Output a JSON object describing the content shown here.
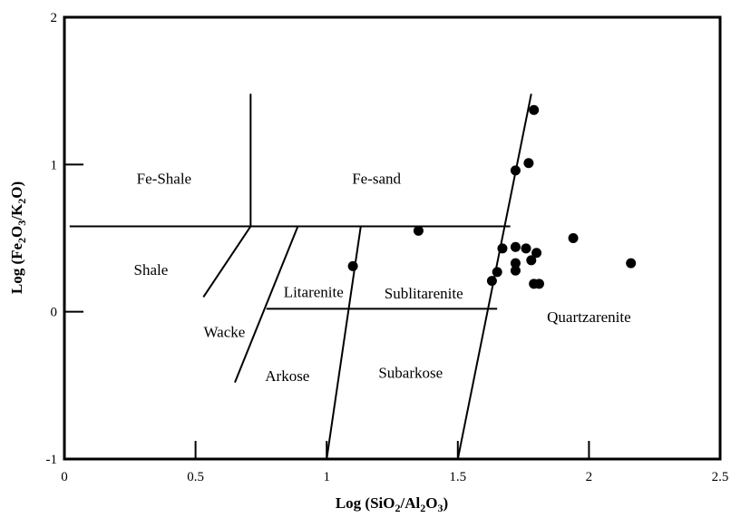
{
  "chart_data": {
    "type": "scatter",
    "title": "",
    "xlabel": {
      "prefix": "Log (SiO",
      "sub1": "2",
      "mid": "/Al",
      "sub2": "2",
      "mid2": "O",
      "sub3": "3",
      "suffix": ")"
    },
    "ylabel": {
      "prefix": "Log (Fe",
      "sub1": "2",
      "mid": "O",
      "sub2": "3",
      "mid2": "/K",
      "sub3": "2",
      "suffix": "O)"
    },
    "xlim": [
      0,
      2.5
    ],
    "ylim": [
      -1,
      2
    ],
    "x_ticks": [
      {
        "value": 0,
        "label": "0"
      },
      {
        "value": 0.5,
        "label": "0.5"
      },
      {
        "value": 1,
        "label": "1"
      },
      {
        "value": 1.5,
        "label": "1.5"
      },
      {
        "value": 2,
        "label": "2"
      },
      {
        "value": 2.5,
        "label": "2.5"
      }
    ],
    "y_ticks": [
      {
        "value": -1,
        "label": "-1"
      },
      {
        "value": 0,
        "label": "0"
      },
      {
        "value": 1,
        "label": "1"
      },
      {
        "value": 2,
        "label": "2"
      }
    ],
    "grid": false,
    "fields": [
      {
        "name": "fe-shale",
        "label": "Fe-Shale",
        "x": 0.38,
        "y": 0.87
      },
      {
        "name": "fe-sand",
        "label": "Fe-sand",
        "x": 1.19,
        "y": 0.87
      },
      {
        "name": "shale",
        "label": "Shale",
        "x": 0.33,
        "y": 0.25
      },
      {
        "name": "litarenite",
        "label": "Litarenite",
        "x": 0.95,
        "y": 0.1
      },
      {
        "name": "sublitarenite",
        "label": "Sublitarenite",
        "x": 1.37,
        "y": 0.09
      },
      {
        "name": "wacke",
        "label": "Wacke",
        "x": 0.61,
        "y": -0.17
      },
      {
        "name": "quartzarenite",
        "label": "Quartzarenite",
        "x": 2.0,
        "y": -0.07
      },
      {
        "name": "arkose",
        "label": "Arkose",
        "x": 0.85,
        "y": -0.47
      },
      {
        "name": "subarkose",
        "label": "Subarkose",
        "x": 1.32,
        "y": -0.45
      }
    ],
    "boundaries": [
      {
        "name": "fe-shale-fe-sand-divider",
        "x1": 0.71,
        "y1": 1.48,
        "x2": 0.71,
        "y2": 0.58
      },
      {
        "name": "iron-rich-boundary",
        "x1": 0.02,
        "y1": 0.58,
        "x2": 1.7,
        "y2": 0.58
      },
      {
        "name": "quartzarenite-boundary",
        "x1": 1.78,
        "y1": 1.48,
        "x2": 1.5,
        "y2": -1.0
      },
      {
        "name": "shale-wacke-boundary",
        "x1": 0.71,
        "y1": 0.58,
        "x2": 0.53,
        "y2": 0.1
      },
      {
        "name": "wacke-arkose-boundary",
        "x1": 0.89,
        "y1": 0.58,
        "x2": 0.65,
        "y2": -0.48
      },
      {
        "name": "litarenite-sublitarenite-boundary",
        "x1": 1.13,
        "y1": 0.58,
        "x2": 1.0,
        "y2": -1.0
      },
      {
        "name": "sublitarenite-subarkose-boundary",
        "x1": 0.77,
        "y1": 0.02,
        "x2": 1.65,
        "y2": 0.02
      }
    ],
    "points": [
      {
        "x": 1.1,
        "y": 0.31
      },
      {
        "x": 1.35,
        "y": 0.55
      },
      {
        "x": 1.63,
        "y": 0.21
      },
      {
        "x": 1.65,
        "y": 0.27
      },
      {
        "x": 1.67,
        "y": 0.43
      },
      {
        "x": 1.72,
        "y": 0.44
      },
      {
        "x": 1.72,
        "y": 0.33
      },
      {
        "x": 1.72,
        "y": 0.28
      },
      {
        "x": 1.72,
        "y": 0.96
      },
      {
        "x": 1.76,
        "y": 0.43
      },
      {
        "x": 1.77,
        "y": 1.01
      },
      {
        "x": 1.78,
        "y": 0.35
      },
      {
        "x": 1.79,
        "y": 1.37
      },
      {
        "x": 1.79,
        "y": 0.19
      },
      {
        "x": 1.8,
        "y": 0.4
      },
      {
        "x": 1.81,
        "y": 0.19
      },
      {
        "x": 1.94,
        "y": 0.5
      },
      {
        "x": 2.16,
        "y": 0.33
      }
    ]
  }
}
